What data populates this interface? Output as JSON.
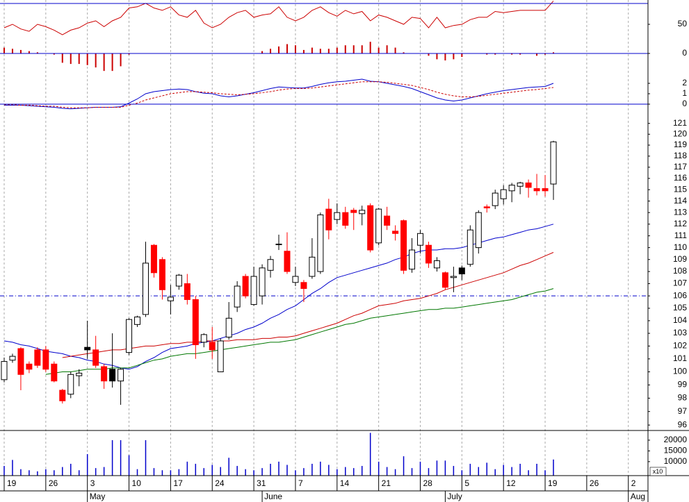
{
  "chart_data": [
    {
      "type": "candlestick",
      "log": true,
      "ylim": [
        95.6,
        122.8
      ],
      "yticks": [
        96,
        97,
        98,
        99,
        100,
        101,
        102,
        103,
        104,
        105,
        106,
        107,
        108,
        109,
        110,
        111,
        112,
        113,
        114,
        115,
        116,
        117,
        118,
        119,
        120,
        121
      ],
      "open": [
        99.4,
        100.9,
        101.8,
        100.6,
        101.7,
        101.7,
        100.6,
        98.6,
        98.3,
        99.7,
        101.9,
        101.7,
        100.4,
        100.2,
        99.3,
        101.5,
        103.7,
        104.5,
        110.2,
        109,
        105.6,
        106.8,
        107,
        105.7,
        102.3,
        102.3,
        100,
        102.7,
        105.1,
        107.6,
        105.3,
        106,
        108.1,
        110.3,
        109.7,
        107.1,
        107.1,
        107.6,
        108,
        113.3,
        112.4,
        113,
        113.2,
        112.9,
        113.6,
        110.4,
        112.7,
        111.4,
        112.3,
        108.2,
        110.2,
        110.2,
        108.3,
        107.9,
        107.5,
        108.3,
        108.6,
        110,
        113.5,
        113.6,
        114.2,
        114.9,
        115.3,
        115.6,
        115.1,
        115.1,
        115.5
      ],
      "high": [
        101.1,
        101.4,
        101.9,
        100.8,
        101.9,
        102,
        100.8,
        98.7,
        100,
        100.2,
        104,
        102.8,
        100.6,
        103,
        100.3,
        104.2,
        104.4,
        110.5,
        110.3,
        109.2,
        106.9,
        107.8,
        107.8,
        106,
        103,
        103.5,
        102.6,
        105.5,
        107.2,
        107.8,
        108.4,
        108.6,
        109.3,
        111.1,
        111.3,
        108.4,
        107.3,
        110.8,
        113,
        114.2,
        113.8,
        113.5,
        113.4,
        113.6,
        113.8,
        113.4,
        113.5,
        111.9,
        112.4,
        110.8,
        111.5,
        110.5,
        109.2,
        108,
        108.4,
        108.5,
        111.9,
        113.2,
        113.7,
        115,
        115.4,
        115.6,
        115.7,
        115.9,
        116.4,
        116.3,
        119.4
      ],
      "low": [
        99.2,
        100.7,
        98.6,
        99.9,
        100.3,
        100,
        99.2,
        97.6,
        98,
        98.9,
        101,
        100.3,
        98.7,
        98.8,
        97.5,
        101.3,
        103.5,
        104.3,
        107.5,
        105.7,
        104.5,
        106.5,
        105.3,
        101,
        101.9,
        101,
        100,
        102.5,
        104.7,
        105.8,
        105.2,
        105.3,
        107.5,
        109.8,
        107.8,
        106.8,
        105.5,
        107.4,
        107.8,
        110.7,
        112,
        111.6,
        111.5,
        111.9,
        109.6,
        110.2,
        111.5,
        110.6,
        107.8,
        107.9,
        109.5,
        108.3,
        108,
        106.5,
        106.3,
        107.3,
        108.4,
        109.5,
        113,
        113.3,
        113.7,
        113.9,
        114.6,
        114.3,
        114.5,
        114.4,
        114.1
      ],
      "close": [
        100.8,
        101.2,
        99.8,
        100.2,
        100.5,
        100.2,
        99.3,
        97.8,
        99.8,
        99.9,
        101.7,
        100.5,
        99.3,
        99.3,
        100.2,
        104.1,
        104.3,
        108.7,
        107.9,
        106.5,
        105.9,
        107.7,
        105.7,
        102.1,
        102.9,
        101.7,
        102.4,
        104.2,
        106.8,
        106,
        107.6,
        108.3,
        109,
        110.3,
        108,
        107.6,
        106.6,
        109.2,
        112.8,
        111.5,
        113,
        111.9,
        113,
        113.2,
        109.8,
        113.3,
        111.9,
        111.2,
        108.1,
        109.8,
        111.2,
        108.7,
        108.9,
        106.7,
        107.6,
        107.8,
        111.5,
        113,
        113.4,
        114.7,
        115,
        115.4,
        115.6,
        115.2,
        114.9,
        114.9,
        119.3
      ],
      "colors": [
        "#ffffff",
        "#ffffff",
        "#ff0000",
        "#ff0000",
        "#ff0000",
        "#ff0000",
        "#ff0000",
        "#ff0000",
        "#ffffff",
        "#ffffff",
        "#000000",
        "#ff0000",
        "#ff0000",
        "#000000",
        "#ffffff",
        "#ffffff",
        "#ffffff",
        "#ffffff",
        "#ff0000",
        "#ff0000",
        "#ffffff",
        "#ffffff",
        "#ff0000",
        "#ff0000",
        "#ffffff",
        "#ff0000",
        "#ffffff",
        "#ffffff",
        "#ffffff",
        "#ff0000",
        "#ffffff",
        "#ffffff",
        "#ffffff",
        "#ffffff",
        "#ff0000",
        "#ffffff",
        "#ff0000",
        "#ffffff",
        "#ffffff",
        "#ff0000",
        "#ffffff",
        "#ff0000",
        "#ff0000",
        "#ffffff",
        "#ff0000",
        "#ffffff",
        "#ff0000",
        "#ff0000",
        "#ff0000",
        "#ffffff",
        "#ffffff",
        "#ff0000",
        "#ffffff",
        "#ff0000",
        "#ffffff",
        "#000000",
        "#ffffff",
        "#ffffff",
        "#ff0000",
        "#ffffff",
        "#ffffff",
        "#ffffff",
        "#ffffff",
        "#ff0000",
        "#ff0000",
        "#ff0000",
        "#ffffff"
      ],
      "lines": [
        {
          "color": "#0000cc",
          "values": [
            102.4,
            102.3,
            102.1,
            102.0,
            101.8,
            101.6,
            101.5,
            101.4,
            101.2,
            101.1,
            100.9,
            100.8,
            100.6,
            100.5,
            100.3,
            100.2,
            100.4,
            100.8,
            101.1,
            101.5,
            101.8,
            101.9,
            102.0,
            102.2,
            102.3,
            102.4,
            102.6,
            102.8,
            103.0,
            103.3,
            103.5,
            103.8,
            104.2,
            104.5,
            104.9,
            105.2,
            105.7,
            106.2,
            106.6,
            107.1,
            107.5,
            107.7,
            107.9,
            108.1,
            108.3,
            108.5,
            108.7,
            109.0,
            109.2,
            109.5,
            109.7,
            109.8,
            109.8,
            109.9,
            109.9,
            110.0,
            110.2,
            110.4,
            110.6,
            110.8,
            110.9,
            111.1,
            111.3,
            111.5,
            111.6,
            111.8,
            112.0
          ]
        },
        {
          "color": "#cc0000",
          "values": [
            null,
            null,
            null,
            null,
            null,
            null,
            null,
            101.1,
            101.2,
            101.3,
            101.4,
            101.5,
            101.6,
            101.7,
            101.7,
            101.8,
            101.9,
            102.0,
            102.0,
            102.1,
            102.2,
            102.2,
            102.3,
            102.3,
            102.4,
            102.4,
            102.4,
            102.4,
            102.5,
            102.5,
            102.5,
            102.6,
            102.6,
            102.7,
            102.7,
            102.8,
            103.0,
            103.2,
            103.4,
            103.6,
            103.8,
            104.1,
            104.4,
            104.6,
            104.9,
            105.2,
            105.3,
            105.4,
            105.6,
            105.7,
            105.8,
            106.0,
            106.2,
            106.5,
            106.7,
            106.9,
            107.1,
            107.3,
            107.5,
            107.7,
            107.9,
            108.2,
            108.5,
            108.7,
            109.0,
            109.3,
            109.6
          ]
        },
        {
          "color": "#007700",
          "values": [
            null,
            null,
            null,
            null,
            null,
            99.8,
            99.9,
            100.0,
            100.0,
            100.1,
            100.2,
            100.2,
            100.2,
            100.3,
            100.3,
            100.3,
            100.5,
            100.7,
            100.9,
            101.0,
            101.2,
            101.3,
            101.4,
            101.4,
            101.5,
            101.6,
            101.7,
            101.8,
            101.9,
            102.0,
            102.1,
            102.2,
            102.3,
            102.3,
            102.4,
            102.5,
            102.7,
            102.9,
            103.1,
            103.3,
            103.5,
            103.7,
            103.8,
            104.0,
            104.2,
            104.3,
            104.4,
            104.5,
            104.6,
            104.7,
            104.8,
            104.9,
            104.9,
            105.0,
            105.0,
            105.1,
            105.2,
            105.3,
            105.4,
            105.5,
            105.6,
            105.7,
            105.9,
            106.1,
            106.3,
            106.4,
            106.6
          ]
        }
      ],
      "hline": {
        "value": 106,
        "color": "#0000cc"
      }
    },
    {
      "type": "bar",
      "color": "#0000cc",
      "ylim": [
        3500,
        24500
      ],
      "yticks": [
        20000,
        15000,
        10000
      ],
      "unit_label": "x10",
      "categories": [
        "19",
        null,
        null,
        null,
        null,
        "26",
        null,
        null,
        null,
        null,
        "3",
        null,
        null,
        null,
        null,
        "10",
        null,
        null,
        null,
        null,
        "17",
        null,
        null,
        null,
        null,
        "24",
        null,
        null,
        null,
        null,
        "31",
        null,
        null,
        null,
        null,
        "7",
        null,
        null,
        null,
        null,
        "14",
        null,
        null,
        null,
        null,
        "21",
        null,
        null,
        null,
        null,
        "28",
        null,
        null,
        null,
        null,
        "5",
        null,
        null,
        null,
        null,
        "12",
        null,
        null,
        null,
        null,
        "19",
        null,
        null,
        null,
        null,
        "26",
        null,
        null,
        null,
        null,
        "2",
        null,
        null
      ],
      "months": [
        null,
        null,
        null,
        null,
        null,
        null,
        null,
        null,
        null,
        null,
        "May",
        null,
        null,
        null,
        null,
        null,
        null,
        null,
        null,
        null,
        null,
        null,
        null,
        null,
        null,
        null,
        null,
        null,
        null,
        null,
        null,
        "June",
        null,
        null,
        null,
        null,
        null,
        null,
        null,
        null,
        null,
        null,
        null,
        null,
        null,
        null,
        null,
        null,
        null,
        null,
        null,
        null,
        null,
        "July",
        null,
        null,
        null,
        null,
        null,
        null,
        null,
        null,
        null,
        null,
        null,
        null,
        null,
        null,
        null,
        null,
        null,
        null,
        null,
        null,
        null,
        "Aug",
        null,
        null
      ],
      "values": [
        8000,
        10800,
        6500,
        6000,
        5500,
        6500,
        6000,
        7500,
        9000,
        6000,
        13500,
        7000,
        7500,
        20000,
        20000,
        13000,
        6500,
        20000,
        7000,
        6000,
        6000,
        6500,
        10000,
        9000,
        7000,
        8500,
        7500,
        11800,
        8000,
        6500,
        6000,
        7000,
        9000,
        10000,
        8500,
        6000,
        7000,
        9000,
        10000,
        8500,
        6500,
        7500,
        7000,
        8000,
        23400,
        10000,
        7500,
        6500,
        12500,
        7000,
        10000,
        7000,
        10500,
        10500,
        8000,
        6000,
        9000,
        7500,
        9500,
        6500,
        8500,
        7500,
        9000,
        6000,
        9000,
        6000,
        11000,
        null,
        null,
        null,
        null,
        null,
        null,
        null,
        null,
        null,
        null,
        null
      ]
    },
    {
      "type": "line",
      "ylim": [
        -31,
        91.7
      ],
      "yticks": [
        50,
        0
      ],
      "series": [
        {
          "color": "#cc0000",
          "values": [
            44,
            50,
            42,
            38,
            50,
            46,
            40,
            32,
            40,
            44,
            52,
            56,
            46,
            56,
            62,
            78,
            80,
            86,
            78,
            74,
            80,
            66,
            62,
            74,
            52,
            44,
            50,
            62,
            70,
            74,
            62,
            66,
            68,
            80,
            62,
            56,
            62,
            74,
            80,
            70,
            64,
            74,
            68,
            72,
            56,
            66,
            62,
            56,
            50,
            62,
            60,
            44,
            62,
            44,
            48,
            50,
            58,
            62,
            62,
            72,
            70,
            72,
            74,
            74,
            74,
            74,
            90
          ]
        }
      ],
      "bars": {
        "color": "#cc0000",
        "values": [
          10,
          8,
          6,
          4,
          2,
          0,
          -2,
          -16,
          -18,
          -18,
          -20,
          -24,
          -30,
          -30,
          -22,
          -2,
          0,
          0,
          0,
          0,
          0,
          0,
          0,
          0,
          0,
          0,
          0,
          0,
          0,
          0,
          0,
          4,
          8,
          12,
          16,
          14,
          6,
          10,
          8,
          8,
          10,
          14,
          14,
          14,
          20,
          10,
          14,
          10,
          2,
          0,
          0,
          -4,
          -10,
          -12,
          -10,
          -6,
          0,
          0,
          -2,
          -2,
          0,
          -2,
          -2,
          0,
          -4,
          -2,
          2
        ]
      }
    },
    {
      "type": "line",
      "ylim": [
        0,
        4.87
      ],
      "yticks": [
        2,
        1,
        0
      ],
      "series": [
        {
          "color": "#0000cc",
          "values": [
            -0.1,
            -0.1,
            -0.1,
            -0.15,
            -0.2,
            -0.25,
            -0.3,
            -0.4,
            -0.45,
            -0.4,
            -0.35,
            -0.3,
            -0.3,
            -0.3,
            -0.25,
            0.1,
            0.5,
            1.0,
            1.2,
            1.3,
            1.4,
            1.45,
            1.4,
            1.2,
            1.05,
            1.0,
            0.8,
            0.7,
            0.8,
            0.95,
            1.1,
            1.3,
            1.5,
            1.65,
            1.6,
            1.55,
            1.55,
            1.7,
            1.9,
            2.05,
            2.15,
            2.2,
            2.3,
            2.4,
            2.2,
            2.15,
            2.0,
            1.85,
            1.7,
            1.5,
            1.2,
            0.9,
            0.6,
            0.4,
            0.3,
            0.4,
            0.6,
            0.8,
            1.0,
            1.15,
            1.3,
            1.4,
            1.5,
            1.6,
            1.65,
            1.7,
            2.0
          ]
        },
        {
          "color": "#cc0000",
          "dash": true,
          "values": [
            -0.05,
            -0.05,
            -0.1,
            -0.1,
            -0.15,
            -0.2,
            -0.2,
            -0.3,
            -0.35,
            -0.35,
            -0.35,
            -0.3,
            -0.3,
            -0.3,
            -0.3,
            -0.1,
            0.1,
            0.4,
            0.6,
            0.8,
            1.0,
            1.1,
            1.2,
            1.2,
            1.15,
            1.1,
            1.0,
            0.95,
            0.9,
            0.95,
            1.0,
            1.1,
            1.2,
            1.35,
            1.45,
            1.5,
            1.5,
            1.55,
            1.65,
            1.75,
            1.85,
            1.95,
            2.05,
            2.15,
            2.15,
            2.15,
            2.1,
            2.0,
            1.9,
            1.8,
            1.6,
            1.4,
            1.15,
            0.95,
            0.8,
            0.7,
            0.7,
            0.75,
            0.85,
            0.95,
            1.05,
            1.15,
            1.25,
            1.35,
            1.4,
            1.5,
            1.6
          ]
        }
      ]
    }
  ]
}
